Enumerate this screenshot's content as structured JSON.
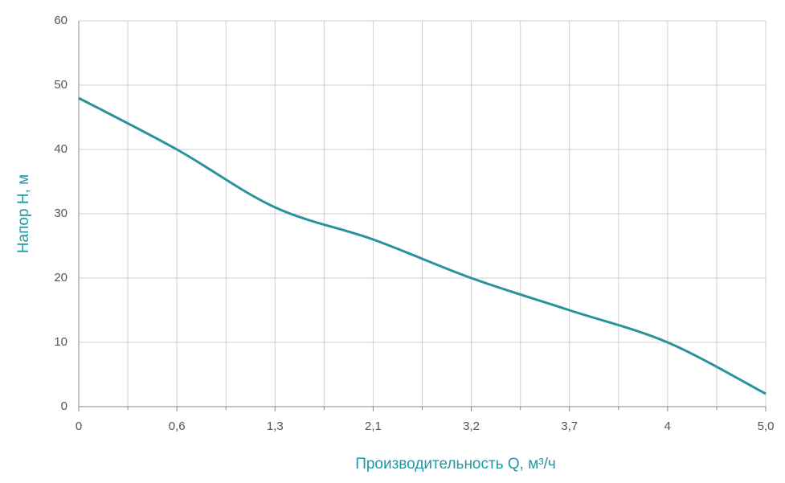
{
  "chart_data": {
    "type": "line",
    "categories": [
      "0",
      "0,6",
      "1,3",
      "2,1",
      "3,2",
      "3,7",
      "4",
      "5,0"
    ],
    "series": [
      {
        "name": null,
        "color": "#2a929b",
        "values": [
          48,
          40,
          31,
          26,
          20,
          15,
          10,
          2
        ]
      }
    ],
    "ylim": [
      0,
      60
    ],
    "yticks": [
      0,
      10,
      20,
      30,
      40,
      50,
      60
    ],
    "grid": true,
    "xlabel": "Производительность Q, м³/ч",
    "ylabel": "Напор Н, м"
  }
}
